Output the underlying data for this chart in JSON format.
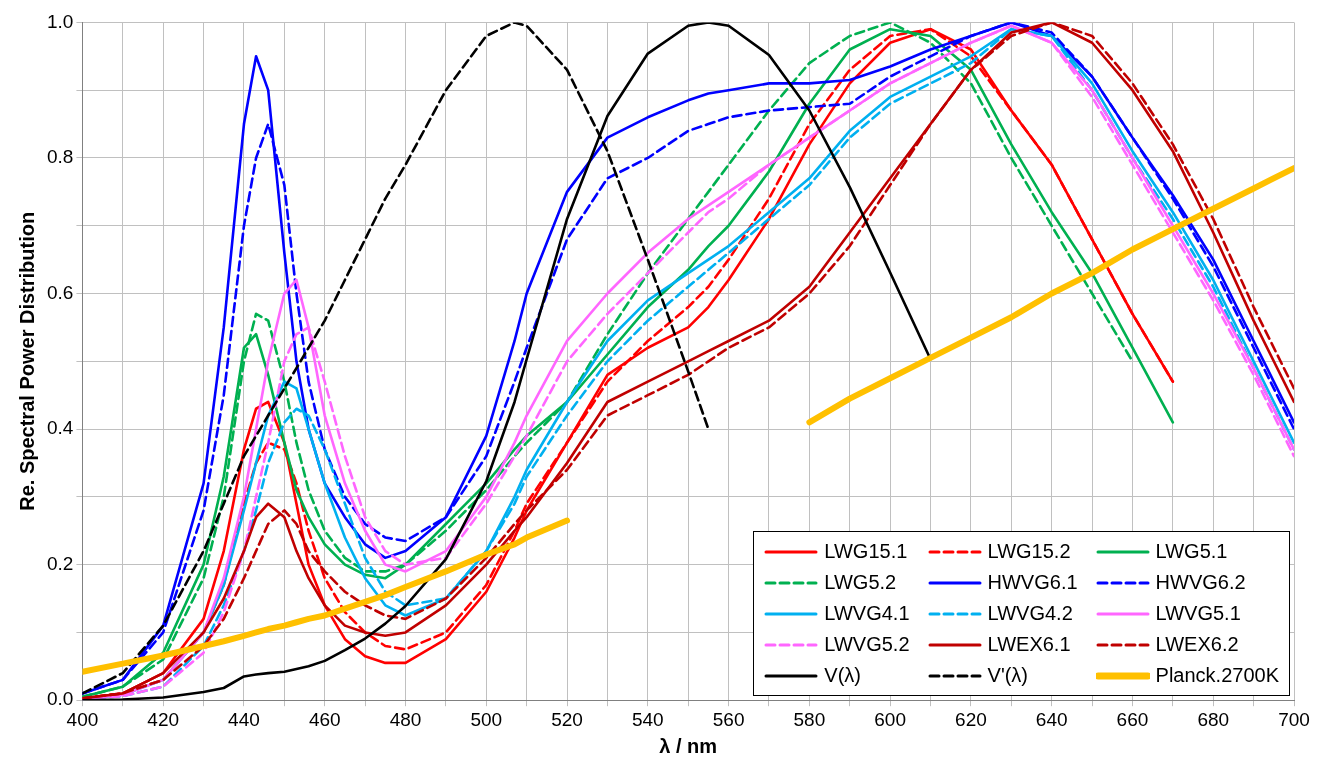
{
  "chart_data": {
    "type": "line",
    "xlabel": "λ / nm",
    "ylabel": "Re. Spectral Power Distribution",
    "x": [
      400,
      410,
      420,
      430,
      435,
      440,
      443,
      446,
      450,
      453,
      456,
      460,
      465,
      470,
      475,
      480,
      490,
      500,
      507,
      510,
      520,
      530,
      540,
      550,
      555,
      560,
      570,
      580,
      590,
      600,
      610,
      620,
      630,
      640,
      650,
      660,
      670,
      680,
      690,
      700
    ],
    "xlim": [
      400,
      700
    ],
    "xticks": [
      400,
      {
        "value": 410,
        "label": null
      },
      420,
      {
        "value": 430,
        "label": null
      },
      440,
      {
        "value": 450,
        "label": null
      },
      460,
      {
        "value": 470,
        "label": null
      },
      480,
      {
        "value": 490,
        "label": null
      },
      500,
      {
        "value": 510,
        "label": null
      },
      520,
      {
        "value": 530,
        "label": null
      },
      540,
      {
        "value": 550,
        "label": null
      },
      560,
      {
        "value": 570,
        "label": null
      },
      580,
      {
        "value": 590,
        "label": null
      },
      600,
      {
        "value": 610,
        "label": null
      },
      620,
      {
        "value": 630,
        "label": null
      },
      640,
      {
        "value": 650,
        "label": null
      },
      660,
      {
        "value": 670,
        "label": null
      },
      680,
      {
        "value": 690,
        "label": null
      },
      700
    ],
    "ylim": [
      0,
      1
    ],
    "yticks": [
      {
        "value": 0,
        "label": "0.0"
      },
      {
        "value": 0.1,
        "label": null
      },
      {
        "value": 0.2,
        "label": "0.2"
      },
      {
        "value": 0.3,
        "label": null
      },
      {
        "value": 0.4,
        "label": "0.4"
      },
      {
        "value": 0.5,
        "label": null
      },
      {
        "value": 0.6,
        "label": "0.6"
      },
      {
        "value": 0.7,
        "label": null
      },
      {
        "value": 0.8,
        "label": "0.8"
      },
      {
        "value": 0.9,
        "label": null
      },
      {
        "value": 1,
        "label": "1.0"
      }
    ],
    "grid": true,
    "legend": "bottom right",
    "marker": "none",
    "series": [
      {
        "name": "LWG15.1",
        "color": "#ff0000",
        "line_style": "solid",
        "values": [
          0.003,
          0.01,
          0.04,
          0.12,
          0.22,
          0.37,
          0.43,
          0.44,
          0.38,
          0.29,
          0.2,
          0.14,
          0.09,
          0.065,
          0.055,
          0.055,
          0.09,
          0.16,
          0.24,
          0.28,
          0.38,
          0.48,
          0.52,
          0.55,
          0.58,
          0.62,
          0.71,
          0.82,
          0.91,
          0.97,
          0.99,
          0.96,
          0.87,
          0.79,
          0.68,
          0.57,
          0.47,
          null,
          null,
          null
        ]
      },
      {
        "name": "LWG15.2",
        "color": "#ff0000",
        "line_style": "dashed",
        "values": [
          0.003,
          0.01,
          0.03,
          0.1,
          0.17,
          0.29,
          0.35,
          0.38,
          0.37,
          0.32,
          0.25,
          0.18,
          0.13,
          0.1,
          0.08,
          0.075,
          0.1,
          0.17,
          0.25,
          0.29,
          0.38,
          0.47,
          0.53,
          0.58,
          0.61,
          0.65,
          0.74,
          0.85,
          0.93,
          0.98,
          0.99,
          0.95,
          0.87,
          0.79,
          0.68,
          0.57,
          0.47,
          null,
          null,
          null
        ]
      },
      {
        "name": "LWG5.1",
        "color": "#00b050",
        "line_style": "solid",
        "values": [
          0.005,
          0.02,
          0.07,
          0.2,
          0.33,
          0.52,
          0.54,
          0.48,
          0.38,
          0.31,
          0.27,
          0.23,
          0.2,
          0.185,
          0.18,
          0.2,
          0.26,
          0.32,
          0.37,
          0.39,
          0.44,
          0.51,
          0.58,
          0.635,
          0.67,
          0.7,
          0.78,
          0.88,
          0.96,
          0.99,
          0.98,
          0.93,
          0.82,
          0.72,
          0.63,
          0.52,
          0.41,
          null,
          null,
          null
        ]
      },
      {
        "name": "LWG5.2",
        "color": "#00b050",
        "line_style": "dashed",
        "values": [
          0.005,
          0.02,
          0.06,
          0.18,
          0.3,
          0.5,
          0.57,
          0.56,
          0.47,
          0.38,
          0.31,
          0.25,
          0.21,
          0.19,
          0.19,
          0.2,
          0.25,
          0.31,
          0.36,
          0.38,
          0.44,
          0.54,
          0.63,
          0.71,
          0.75,
          0.79,
          0.87,
          0.94,
          0.98,
          1.0,
          0.97,
          0.91,
          0.8,
          0.7,
          0.6,
          0.5,
          null,
          null,
          null,
          null
        ]
      },
      {
        "name": "HWVG6.1",
        "color": "#0000ff",
        "line_style": "solid",
        "values": [
          0.01,
          0.03,
          0.11,
          0.32,
          0.55,
          0.85,
          0.95,
          0.9,
          0.66,
          0.5,
          0.4,
          0.32,
          0.27,
          0.23,
          0.21,
          0.22,
          0.27,
          0.39,
          0.53,
          0.6,
          0.75,
          0.83,
          0.86,
          0.885,
          0.895,
          0.9,
          0.91,
          0.91,
          0.915,
          0.935,
          0.96,
          0.98,
          1.0,
          0.98,
          0.92,
          0.83,
          0.745,
          0.65,
          0.53,
          0.41
        ]
      },
      {
        "name": "HWVG6.2",
        "color": "#0000ff",
        "line_style": "dashed",
        "values": [
          0.01,
          0.03,
          0.1,
          0.28,
          0.45,
          0.7,
          0.8,
          0.85,
          0.76,
          0.6,
          0.47,
          0.37,
          0.3,
          0.26,
          0.24,
          0.235,
          0.27,
          0.36,
          0.47,
          0.52,
          0.68,
          0.77,
          0.8,
          0.84,
          0.85,
          0.86,
          0.87,
          0.875,
          0.88,
          0.92,
          0.95,
          0.98,
          1.0,
          0.985,
          0.92,
          0.83,
          0.74,
          0.64,
          0.52,
          0.4
        ]
      },
      {
        "name": "LWVG4.1",
        "color": "#00b0f0",
        "line_style": "solid",
        "values": [
          0.002,
          0.008,
          0.03,
          0.1,
          0.17,
          0.28,
          0.35,
          0.42,
          0.47,
          0.46,
          0.4,
          0.32,
          0.24,
          0.18,
          0.14,
          0.125,
          0.15,
          0.22,
          0.3,
          0.34,
          0.44,
          0.53,
          0.59,
          0.63,
          0.65,
          0.67,
          0.72,
          0.77,
          0.84,
          0.89,
          0.92,
          0.95,
          0.99,
          0.98,
          0.91,
          0.81,
          0.72,
          0.62,
          0.5,
          0.38
        ]
      },
      {
        "name": "LWVG4.2",
        "color": "#00b0f0",
        "line_style": "dashed",
        "values": [
          0.002,
          0.006,
          0.02,
          0.08,
          0.14,
          0.22,
          0.28,
          0.35,
          0.41,
          0.43,
          0.42,
          0.37,
          0.29,
          0.21,
          0.16,
          0.14,
          0.15,
          0.22,
          0.29,
          0.33,
          0.42,
          0.5,
          0.56,
          0.61,
          0.635,
          0.66,
          0.71,
          0.76,
          0.83,
          0.88,
          0.91,
          0.94,
          0.99,
          0.98,
          0.9,
          0.8,
          0.71,
          0.61,
          0.49,
          0.37
        ]
      },
      {
        "name": "LWVG5.1",
        "color": "#ff66ff",
        "line_style": "solid",
        "values": [
          0.002,
          0.008,
          0.03,
          0.1,
          0.18,
          0.3,
          0.4,
          0.5,
          0.6,
          0.62,
          0.55,
          0.42,
          0.32,
          0.25,
          0.2,
          0.19,
          0.22,
          0.3,
          0.38,
          0.42,
          0.53,
          0.6,
          0.66,
          0.71,
          0.73,
          0.75,
          0.79,
          0.83,
          0.87,
          0.91,
          0.94,
          0.97,
          0.995,
          0.97,
          0.9,
          0.8,
          0.7,
          0.6,
          0.49,
          0.37
        ]
      },
      {
        "name": "LWVG5.2",
        "color": "#ff66ff",
        "line_style": "dashed",
        "values": [
          0.002,
          0.006,
          0.02,
          0.07,
          0.13,
          0.22,
          0.3,
          0.38,
          0.5,
          0.54,
          0.55,
          0.47,
          0.36,
          0.27,
          0.22,
          0.2,
          0.21,
          0.29,
          0.36,
          0.39,
          0.5,
          0.57,
          0.63,
          0.69,
          0.72,
          0.74,
          0.79,
          0.83,
          0.87,
          0.91,
          0.94,
          0.97,
          0.995,
          0.97,
          0.89,
          0.79,
          0.69,
          0.59,
          0.48,
          0.36
        ]
      },
      {
        "name": "LWEX6.1",
        "color": "#c00000",
        "line_style": "solid",
        "values": [
          0.003,
          0.01,
          0.04,
          0.1,
          0.15,
          0.22,
          0.27,
          0.29,
          0.27,
          0.22,
          0.18,
          0.14,
          0.11,
          0.1,
          0.095,
          0.1,
          0.14,
          0.2,
          0.25,
          0.27,
          0.35,
          0.44,
          0.47,
          0.5,
          0.515,
          0.53,
          0.56,
          0.61,
          0.69,
          0.77,
          0.85,
          0.93,
          0.985,
          1.0,
          0.97,
          0.9,
          0.81,
          0.69,
          0.56,
          0.44
        ]
      },
      {
        "name": "LWEX6.2",
        "color": "#c00000",
        "line_style": "dashed",
        "values": [
          0.003,
          0.01,
          0.03,
          0.08,
          0.12,
          0.18,
          0.22,
          0.26,
          0.28,
          0.26,
          0.22,
          0.19,
          0.16,
          0.14,
          0.125,
          0.12,
          0.15,
          0.21,
          0.26,
          0.28,
          0.34,
          0.42,
          0.45,
          0.48,
          0.5,
          0.52,
          0.55,
          0.6,
          0.67,
          0.76,
          0.85,
          0.93,
          0.98,
          1.0,
          0.98,
          0.91,
          0.82,
          0.71,
          0.58,
          0.46
        ]
      },
      {
        "name": "V(λ)",
        "color": "#000000",
        "line_style": "solid",
        "values": [
          0,
          0.001,
          0.004,
          0.012,
          0.018,
          0.035,
          0.038,
          0.04,
          0.042,
          0.046,
          0.05,
          0.058,
          0.074,
          0.091,
          0.113,
          0.139,
          0.208,
          0.323,
          0.44,
          0.503,
          0.71,
          0.862,
          0.954,
          0.995,
          1.0,
          0.995,
          0.952,
          0.87,
          0.757,
          0.631,
          0.503,
          null,
          null,
          null,
          null,
          null,
          null,
          null,
          null,
          null
        ]
      },
      {
        "name": "V'(λ)",
        "color": "#000000",
        "line_style": "dashed",
        "values": [
          0.01,
          0.04,
          0.11,
          0.22,
          0.29,
          0.36,
          0.39,
          0.42,
          0.46,
          0.49,
          0.52,
          0.56,
          0.62,
          0.68,
          0.74,
          0.79,
          0.9,
          0.98,
          1.0,
          0.995,
          0.93,
          0.81,
          0.65,
          0.485,
          0.4,
          null,
          null,
          null,
          null,
          null,
          null,
          null,
          null,
          null,
          null,
          null,
          null,
          null,
          null,
          null
        ]
      },
      {
        "name": "Planck.2700K",
        "color": "#ffc000",
        "line_style": "solid",
        "values": [
          0.042,
          0.054,
          0.066,
          0.08,
          0.087,
          0.095,
          0.1,
          0.105,
          0.11,
          0.115,
          0.12,
          0.125,
          0.135,
          0.145,
          0.155,
          0.167,
          0.19,
          0.215,
          0.23,
          0.24,
          0.265,
          null,
          null,
          null,
          null,
          null,
          null,
          0.41,
          0.445,
          0.475,
          0.505,
          0.535,
          0.565,
          0.6,
          0.63,
          0.665,
          0.695,
          0.725,
          0.755,
          0.785
        ]
      }
    ]
  }
}
